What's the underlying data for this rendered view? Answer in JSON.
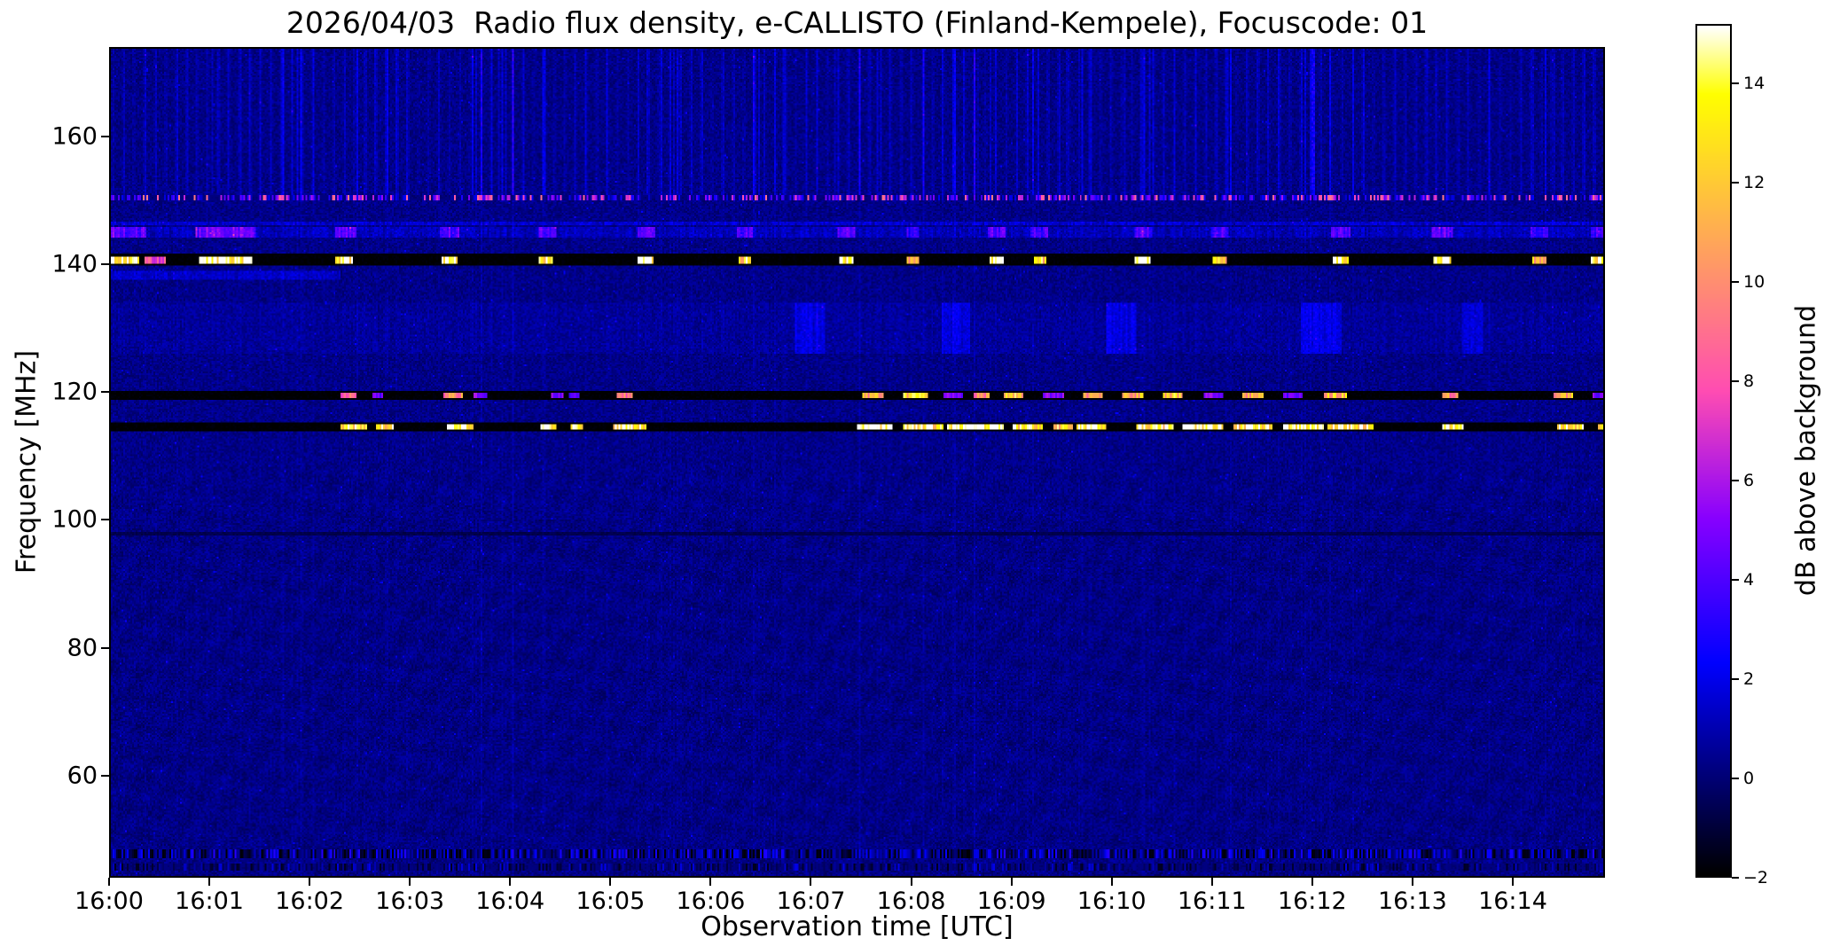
{
  "chart_data": {
    "type": "heatmap",
    "title": "2026/04/03  Radio flux density, e-CALLISTO (Finland-Kempele), Focuscode: 01",
    "title_parts": {
      "date": "2026/04/03",
      "instrument": "e-CALLISTO",
      "station": "Finland-Kempele",
      "focuscode": "01"
    },
    "xlabel": "Observation time [UTC]",
    "ylabel": "Frequency [MHz]",
    "x_tick_labels": [
      "16:00",
      "16:01",
      "16:02",
      "16:03",
      "16:04",
      "16:05",
      "16:06",
      "16:07",
      "16:08",
      "16:09",
      "16:10",
      "16:11",
      "16:12",
      "16:13",
      "16:14"
    ],
    "x_start_min": 0,
    "x_end_min": 14.92,
    "y_ticks": [
      160,
      140,
      120,
      100,
      80,
      60
    ],
    "ylim": [
      44,
      174
    ],
    "grid": false,
    "colorbar": {
      "label": "dB above background",
      "position": "right",
      "ticks": [
        14,
        12,
        10,
        8,
        6,
        4,
        2,
        0,
        -2
      ],
      "tick_labels": [
        "14",
        "12",
        "10",
        "8",
        "6",
        "4",
        "2",
        "0",
        "−2"
      ],
      "vmin": -2,
      "vmax": 15.2,
      "colormap": "gnuplot2"
    },
    "noise": {
      "background_db": 0.18,
      "upper_extra_db": 0.06,
      "amplitude_db": 1.1,
      "stripe_period_min": 0.105,
      "stripe_top_gain": 1.5,
      "stripe_low_gain": 0.3,
      "top_region_start_mhz": 151,
      "speckle_db": 1.3
    },
    "bands": [
      {
        "name": "rfi-speckle-150.6MHz",
        "freq_mhz": 150.6,
        "width_mhz": 0.7,
        "style": "speckle",
        "db_min": 0.5,
        "db_max": 9.5,
        "density": 0.62
      },
      {
        "name": "band-146.6MHz",
        "freq_mhz": 146.6,
        "width_mhz": 0.6,
        "style": "soft",
        "base_db": 1.4
      },
      {
        "name": "band-145MHz",
        "freq_mhz": 145.1,
        "width_mhz": 1.7,
        "style": "soft",
        "base_db": 1.0,
        "bursts": [
          [
            0.0,
            0.35,
            3.6
          ],
          [
            0.85,
            1.45,
            3.8
          ],
          [
            2.25,
            2.45,
            3.2
          ],
          [
            3.28,
            3.48,
            3.2
          ],
          [
            4.27,
            4.45,
            3.2
          ],
          [
            5.26,
            5.44,
            3.2
          ],
          [
            6.26,
            6.42,
            3.0
          ],
          [
            7.27,
            7.44,
            3.2
          ],
          [
            7.95,
            8.07,
            2.6
          ],
          [
            8.77,
            8.95,
            3.2
          ],
          [
            9.2,
            9.37,
            2.8
          ],
          [
            10.23,
            10.42,
            3.2
          ],
          [
            11.0,
            11.17,
            2.8
          ],
          [
            12.2,
            12.4,
            3.2
          ],
          [
            13.2,
            13.42,
            3.2
          ],
          [
            14.2,
            14.37,
            2.8
          ],
          [
            14.8,
            14.92,
            3.0
          ]
        ]
      },
      {
        "name": "rfi-dark-141MHz",
        "freq_mhz": 140.8,
        "width_mhz": 1.9,
        "style": "dark",
        "base_db": -2,
        "bursts": [
          [
            0.0,
            0.28,
            15
          ],
          [
            0.33,
            0.55,
            8
          ],
          [
            0.88,
            1.42,
            15
          ],
          [
            2.25,
            2.42,
            14
          ],
          [
            3.3,
            3.46,
            15
          ],
          [
            4.28,
            4.42,
            14
          ],
          [
            5.27,
            5.42,
            15
          ],
          [
            6.27,
            6.4,
            13
          ],
          [
            7.28,
            7.42,
            14
          ],
          [
            7.95,
            8.07,
            12
          ],
          [
            8.78,
            8.93,
            15
          ],
          [
            9.22,
            9.35,
            12
          ],
          [
            10.24,
            10.4,
            15
          ],
          [
            11.02,
            11.15,
            12
          ],
          [
            12.22,
            12.38,
            15
          ],
          [
            13.22,
            13.4,
            15
          ],
          [
            14.22,
            14.35,
            12
          ],
          [
            14.8,
            14.92,
            14
          ]
        ]
      },
      {
        "name": "band-138.5MHz",
        "freq_mhz": 138.5,
        "width_mhz": 1.4,
        "style": "soft",
        "base_db": 0,
        "bursts": [
          [
            0.0,
            2.3,
            1.2
          ]
        ]
      },
      {
        "name": "fuzz-130MHz",
        "freq_mhz": 130.0,
        "width_mhz": 8.0,
        "style": "soft",
        "base_db": 0.35,
        "bursts": [
          [
            6.85,
            7.15,
            1.4
          ],
          [
            8.3,
            8.6,
            1.2
          ],
          [
            9.95,
            10.25,
            1.4
          ],
          [
            11.9,
            12.3,
            1.4
          ],
          [
            13.5,
            13.72,
            1.2
          ]
        ]
      },
      {
        "name": "rfi-dark-119.5MHz",
        "freq_mhz": 119.5,
        "width_mhz": 1.2,
        "style": "dark",
        "base_db": -2,
        "bursts": [
          [
            2.3,
            2.45,
            9
          ],
          [
            2.62,
            2.72,
            4.5
          ],
          [
            3.32,
            3.52,
            10
          ],
          [
            3.62,
            3.76,
            5
          ],
          [
            4.4,
            4.52,
            5
          ],
          [
            4.58,
            4.68,
            4
          ],
          [
            5.06,
            5.22,
            9
          ],
          [
            7.52,
            7.72,
            11
          ],
          [
            7.92,
            8.16,
            12
          ],
          [
            8.32,
            8.52,
            5
          ],
          [
            8.62,
            8.78,
            10
          ],
          [
            8.92,
            9.12,
            12
          ],
          [
            9.32,
            9.52,
            5
          ],
          [
            9.72,
            9.92,
            10
          ],
          [
            10.12,
            10.32,
            11
          ],
          [
            10.52,
            10.72,
            12
          ],
          [
            10.92,
            11.12,
            5
          ],
          [
            11.32,
            11.52,
            11
          ],
          [
            11.72,
            11.92,
            4.5
          ],
          [
            12.12,
            12.36,
            12
          ],
          [
            13.32,
            13.47,
            10
          ],
          [
            14.42,
            14.62,
            11
          ],
          [
            14.82,
            14.92,
            5
          ]
        ]
      },
      {
        "name": "rfi-dark-114.5MHz",
        "freq_mhz": 114.5,
        "width_mhz": 1.5,
        "style": "dark",
        "base_db": -2,
        "bursts": [
          [
            2.3,
            2.56,
            14
          ],
          [
            2.66,
            2.82,
            13
          ],
          [
            3.36,
            3.62,
            15
          ],
          [
            4.3,
            4.46,
            14
          ],
          [
            4.6,
            4.72,
            13
          ],
          [
            5.02,
            5.36,
            14
          ],
          [
            7.46,
            7.82,
            15
          ],
          [
            7.92,
            8.32,
            14
          ],
          [
            8.36,
            8.92,
            15
          ],
          [
            9.02,
            9.32,
            14
          ],
          [
            9.42,
            9.62,
            13
          ],
          [
            9.66,
            9.96,
            15
          ],
          [
            10.26,
            10.62,
            14
          ],
          [
            10.72,
            11.12,
            15
          ],
          [
            11.22,
            11.62,
            14
          ],
          [
            11.72,
            12.12,
            15
          ],
          [
            12.16,
            12.62,
            14
          ],
          [
            13.32,
            13.52,
            15
          ],
          [
            14.46,
            14.72,
            14
          ],
          [
            14.86,
            14.92,
            13
          ]
        ]
      },
      {
        "name": "line-97.7MHz",
        "freq_mhz": 97.7,
        "width_mhz": 0.6,
        "style": "dark",
        "base_db": -0.7
      },
      {
        "name": "rfi-speckle-47.5MHz",
        "freq_mhz": 47.5,
        "width_mhz": 1.3,
        "style": "speckle",
        "db_min": -2,
        "db_max": 3.2,
        "density": 0.9
      },
      {
        "name": "rfi-speckle-45.4MHz",
        "freq_mhz": 45.4,
        "width_mhz": 0.9,
        "style": "speckle",
        "db_min": -1.5,
        "db_max": 2,
        "density": 0.5
      }
    ],
    "vlines": [
      {
        "t_min": 12.02,
        "width_min": 0.05,
        "f_range": [
          151,
          174
        ],
        "db": 2.4
      }
    ]
  }
}
